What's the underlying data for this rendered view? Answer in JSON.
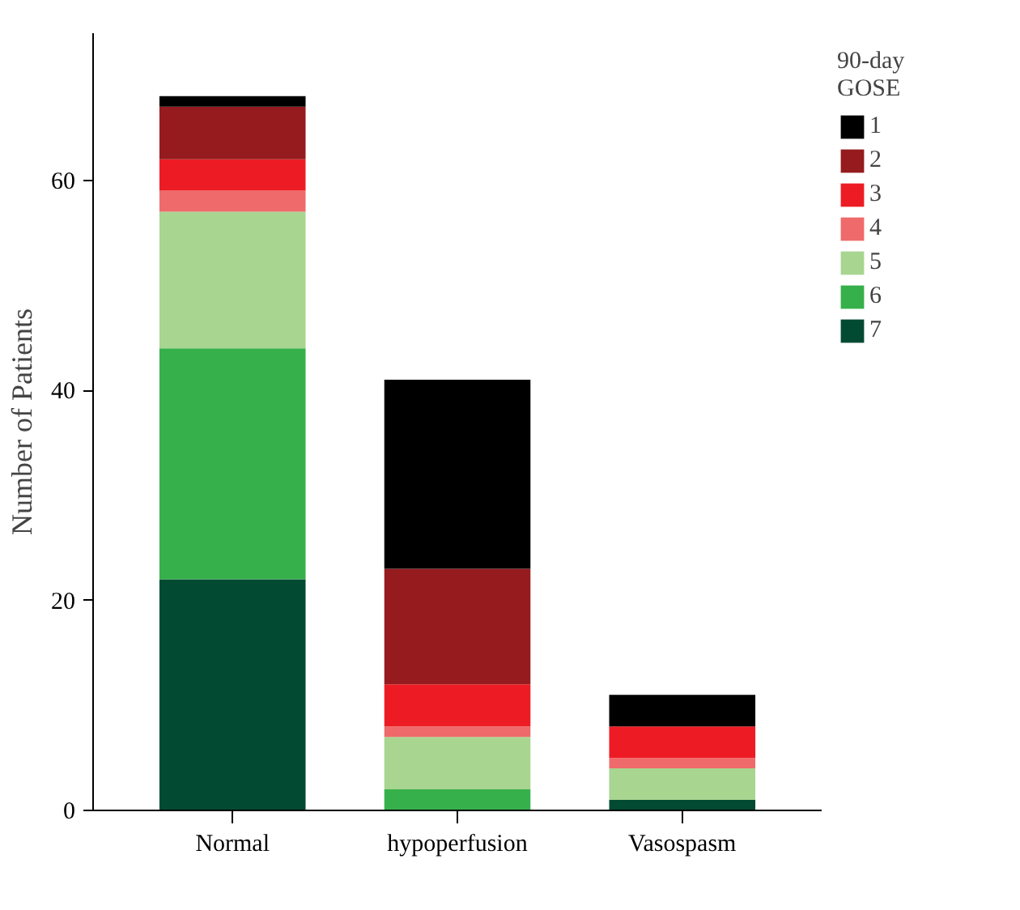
{
  "chart_data": {
    "type": "bar",
    "stacked": true,
    "ylabel": "Number of Patients",
    "legend_title": "90-day GOSE",
    "categories": [
      "Normal",
      "hypoperfusion",
      "Vasospasm"
    ],
    "series": [
      {
        "name": "7",
        "color": "#034a32",
        "values": [
          22,
          0,
          1
        ]
      },
      {
        "name": "6",
        "color": "#36b04b",
        "values": [
          22,
          2,
          0
        ]
      },
      {
        "name": "5",
        "color": "#a8d590",
        "values": [
          13,
          5,
          3
        ]
      },
      {
        "name": "4",
        "color": "#ef6a6a",
        "values": [
          2,
          1,
          1
        ]
      },
      {
        "name": "3",
        "color": "#ed1c24",
        "values": [
          3,
          4,
          3
        ]
      },
      {
        "name": "2",
        "color": "#951b1e",
        "values": [
          5,
          11,
          0
        ]
      },
      {
        "name": "1",
        "color": "#000000",
        "values": [
          1,
          18,
          3
        ]
      }
    ],
    "ylim": [
      0,
      74
    ],
    "yticks": [
      0,
      20,
      40,
      60
    ],
    "grid": false,
    "legend": "top right"
  }
}
